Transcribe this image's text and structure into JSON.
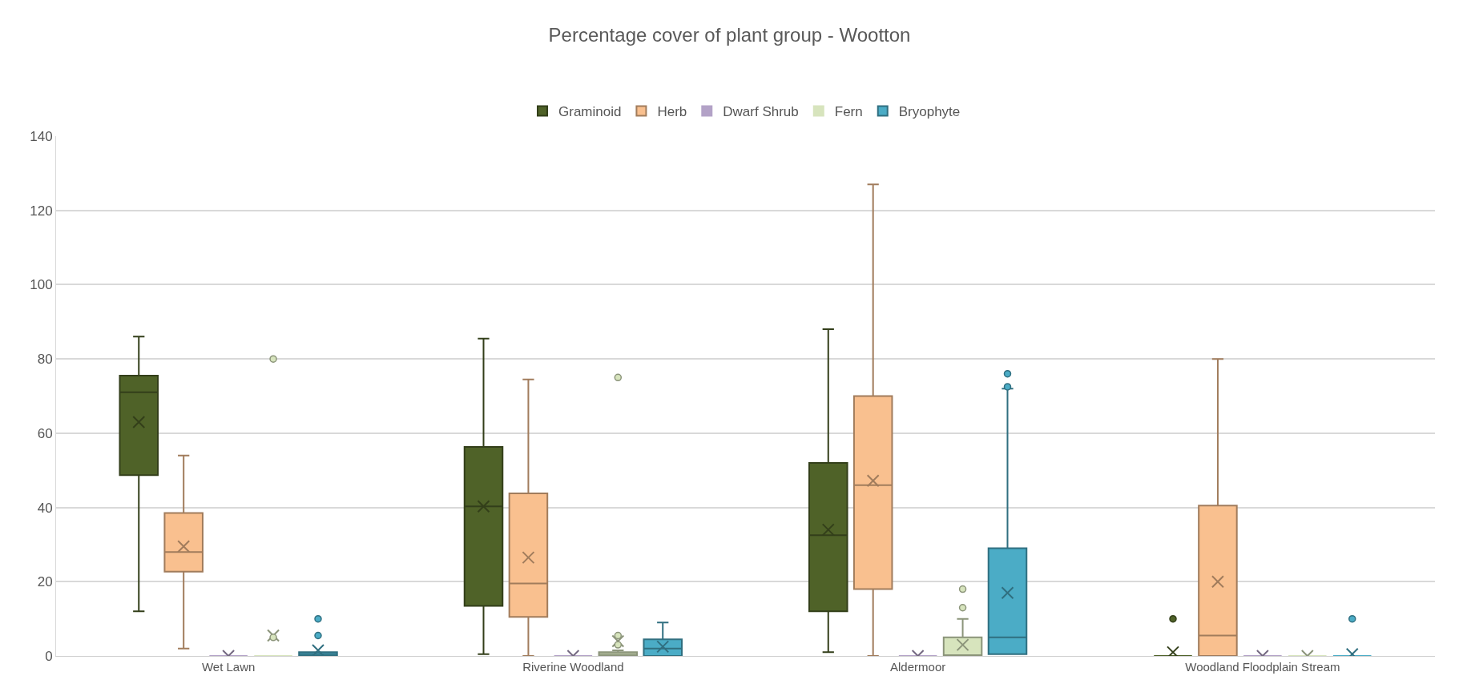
{
  "chart_data": {
    "type": "box",
    "title": "Percentage cover of plant group - Wootton",
    "categories": [
      "Wet Lawn",
      "Riverine Woodland",
      "Aldermoor",
      "Woodland Floodplain Stream"
    ],
    "ylim": [
      0,
      140
    ],
    "yticks": [
      0,
      20,
      40,
      60,
      80,
      100,
      120,
      140
    ],
    "grid": "y",
    "legend": "top",
    "series": [
      {
        "name": "Graminoid",
        "color": "#4f6228",
        "boxes": [
          {
            "low": 12,
            "q1": 48.7,
            "median": 71,
            "q3": 75.5,
            "high": 86,
            "mean": 63
          },
          {
            "low": 0.5,
            "q1": 13.5,
            "median": 40.3,
            "q3": 56.3,
            "high": 85.5,
            "mean": 40.3
          },
          {
            "low": 1,
            "q1": 12,
            "median": 32.5,
            "q3": 52,
            "high": 88,
            "mean": 34
          },
          {
            "low": 0,
            "q1": 0,
            "median": 0,
            "q3": 0,
            "high": 0,
            "mean": 1,
            "outliers": [
              10
            ]
          }
        ]
      },
      {
        "name": "Herb",
        "color": "#f9c08f",
        "boxes": [
          {
            "low": 2,
            "q1": 22.7,
            "median": 28,
            "q3": 38.5,
            "high": 54,
            "mean": 29.5
          },
          {
            "low": 0,
            "q1": 10.5,
            "median": 19.5,
            "q3": 43.8,
            "high": 74.5,
            "mean": 26.5
          },
          {
            "low": 0,
            "q1": 18,
            "median": 46,
            "q3": 70,
            "high": 127,
            "mean": 47.2
          },
          {
            "low": 0,
            "q1": 0,
            "median": 5.5,
            "q3": 40.5,
            "high": 80,
            "mean": 20
          }
        ]
      },
      {
        "name": "Dwarf Shrub",
        "color": "#b3a2c7",
        "boxes": [
          {
            "low": 0,
            "q1": 0,
            "median": 0,
            "q3": 0,
            "high": 0,
            "mean": 0
          },
          {
            "low": 0,
            "q1": 0,
            "median": 0,
            "q3": 0,
            "high": 0,
            "mean": 0
          },
          {
            "low": 0,
            "q1": 0,
            "median": 0,
            "q3": 0,
            "high": 0,
            "mean": 0
          },
          {
            "low": 0,
            "q1": 0,
            "median": 0,
            "q3": 0,
            "high": 0,
            "mean": 0
          }
        ]
      },
      {
        "name": "Fern",
        "color": "#d7e4bd",
        "boxes": [
          {
            "low": 0,
            "q1": 0,
            "median": 0,
            "q3": 0,
            "high": 0,
            "mean": 5.5,
            "outliers": [
              80,
              5
            ]
          },
          {
            "low": 0,
            "q1": 0,
            "median": 0.5,
            "q3": 1,
            "high": 1.5,
            "mean": 4,
            "outliers": [
              75,
              5.5,
              3
            ]
          },
          {
            "low": 0,
            "q1": 0,
            "median": 0,
            "q3": 5,
            "high": 10,
            "mean": 3,
            "outliers": [
              18,
              13
            ]
          },
          {
            "low": 0,
            "q1": 0,
            "median": 0,
            "q3": 0,
            "high": 0,
            "mean": 0
          }
        ]
      },
      {
        "name": "Bryophyte",
        "color": "#4bacc6",
        "boxes": [
          {
            "low": 0,
            "q1": 0,
            "median": 0.5,
            "q3": 1,
            "high": 1,
            "mean": 1.5,
            "outliers": [
              10,
              5.5
            ]
          },
          {
            "low": 0,
            "q1": 0,
            "median": 2,
            "q3": 4.5,
            "high": 9,
            "mean": 2.5
          },
          {
            "low": 0.5,
            "q1": 0.5,
            "median": 5,
            "q3": 29,
            "high": 72,
            "mean": 17,
            "outliers": [
              76,
              72.5
            ]
          },
          {
            "low": 0,
            "q1": 0,
            "median": 0,
            "q3": 0,
            "high": 0,
            "mean": 0.5,
            "outliers": [
              10
            ]
          }
        ]
      }
    ]
  }
}
